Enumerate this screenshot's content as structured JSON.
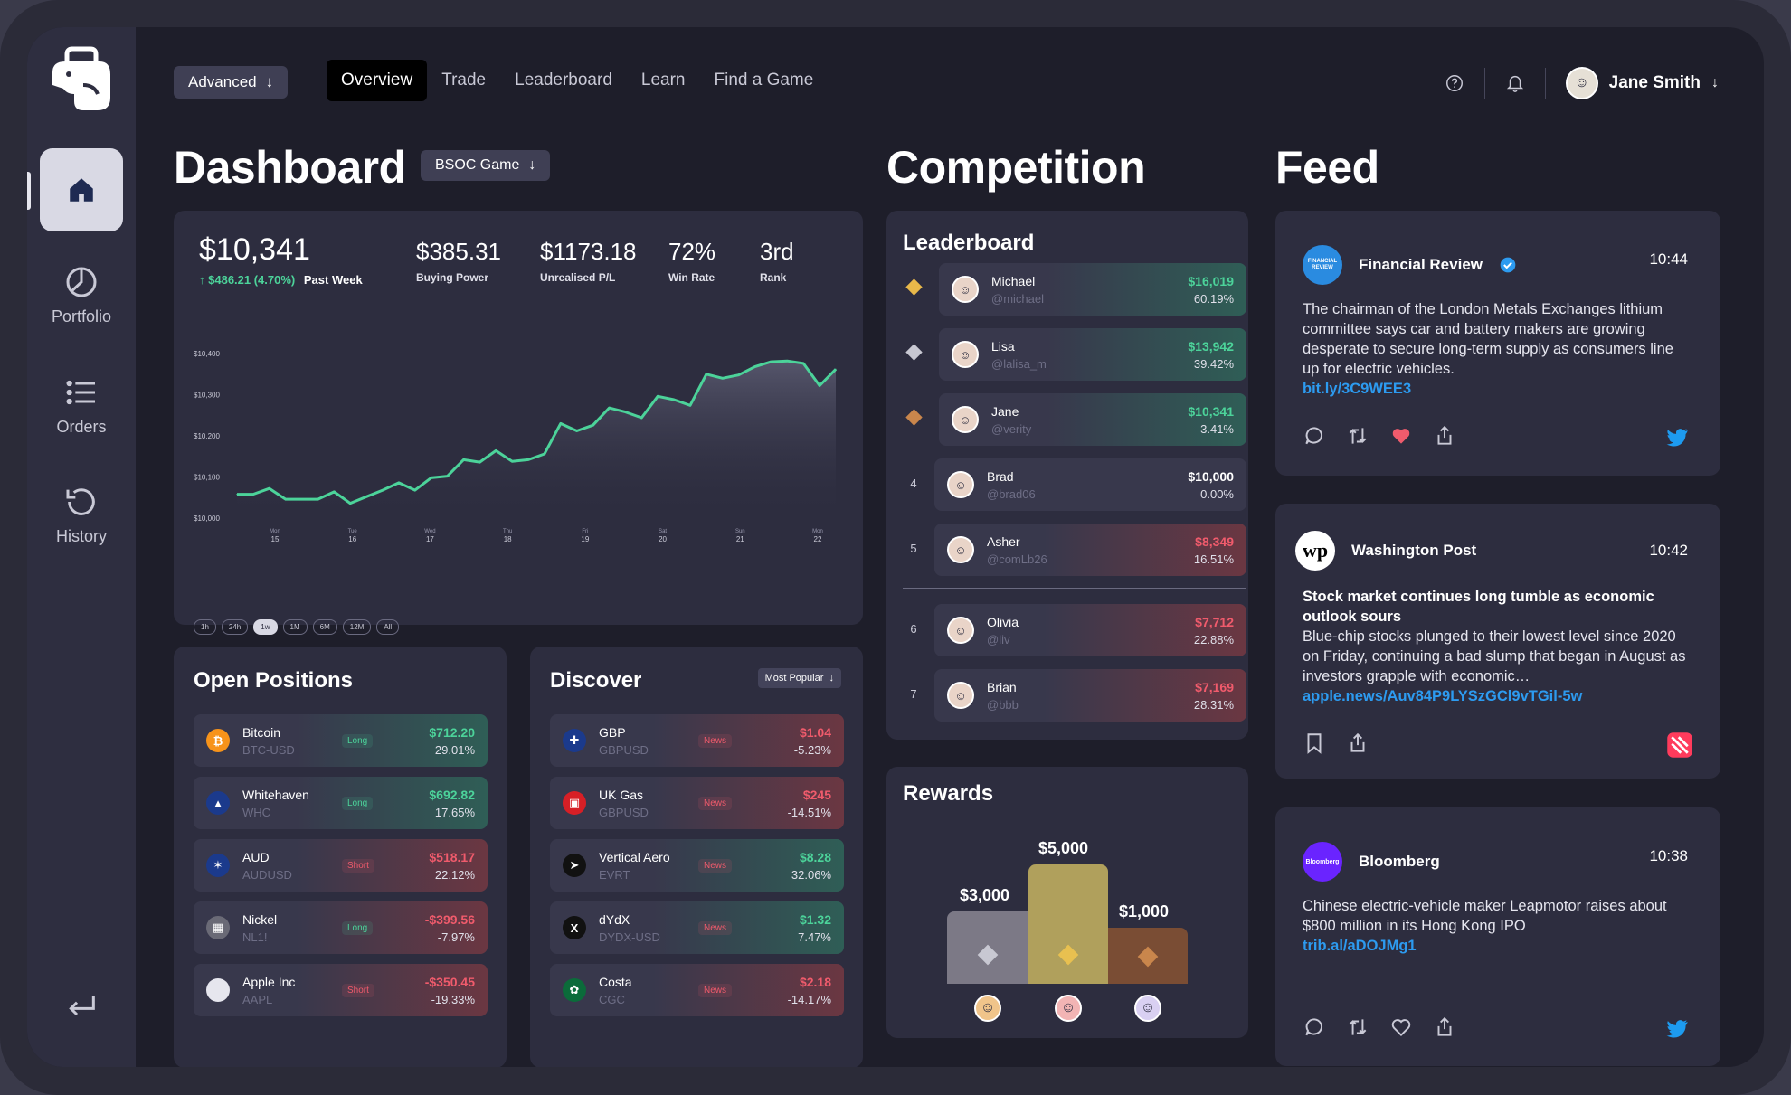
{
  "topbar": {
    "mode_label": "Advanced",
    "tabs": [
      {
        "label": "Overview"
      },
      {
        "label": "Trade"
      },
      {
        "label": "Leaderboard"
      },
      {
        "label": "Learn"
      },
      {
        "label": "Find a Game"
      }
    ],
    "user_name": "Jane Smith"
  },
  "sidebar": {
    "items": [
      {
        "label": "Portfolio"
      },
      {
        "label": "Orders"
      },
      {
        "label": "History"
      }
    ]
  },
  "dashboard": {
    "title": "Dashboard",
    "game_select": "BSOC Game",
    "balance": "$10,341",
    "change": "$486.21 (4.70%)",
    "change_period": "Past Week",
    "stats": [
      {
        "value": "$385.31",
        "label": "Buying Power"
      },
      {
        "value": "$1173.18",
        "label": "Unrealised P/L"
      },
      {
        "value": "72%",
        "label": "Win Rate"
      },
      {
        "value": "3rd",
        "label": "Rank"
      }
    ],
    "ranges": [
      "1h",
      "24h",
      "1w",
      "1M",
      "6M",
      "12M",
      "All"
    ],
    "active_range": "1w"
  },
  "chart_data": {
    "type": "area",
    "x_ticks": [
      {
        "day": "Mon",
        "date": "15"
      },
      {
        "day": "Tue",
        "date": "16"
      },
      {
        "day": "Wed",
        "date": "17"
      },
      {
        "day": "Thu",
        "date": "18"
      },
      {
        "day": "Fri",
        "date": "19"
      },
      {
        "day": "Sat",
        "date": "20"
      },
      {
        "day": "Sun",
        "date": "21"
      },
      {
        "day": "Mon",
        "date": "22"
      }
    ],
    "y_ticks": [
      "$10,400",
      "$10,300",
      "$10,200",
      "$10,100",
      "$10,000"
    ],
    "ylim": [
      10000,
      10400
    ],
    "values": [
      10058,
      10058,
      10072,
      10046,
      10046,
      10046,
      10064,
      10036,
      10052,
      10068,
      10086,
      10068,
      10098,
      10102,
      10142,
      10136,
      10164,
      10138,
      10142,
      10156,
      10230,
      10212,
      10226,
      10268,
      10258,
      10244,
      10296,
      10288,
      10274,
      10350,
      10340,
      10348,
      10368,
      10380,
      10382,
      10376,
      10322,
      10362
    ]
  },
  "open_positions": {
    "title": "Open Positions",
    "items": [
      {
        "name": "Bitcoin",
        "ticker": "BTC-USD",
        "tag": "Long",
        "value": "$712.20",
        "pct": "29.01%",
        "trend": "pos",
        "icon": "bitcoin-icon",
        "icon_bg": "#f7931a",
        "glyph": "₿"
      },
      {
        "name": "Whitehaven",
        "ticker": "WHC",
        "tag": "Long",
        "value": "$692.82",
        "pct": "17.65%",
        "trend": "pos",
        "icon": "whitehaven-icon",
        "icon_bg": "#1b3a8c",
        "glyph": "▲"
      },
      {
        "name": "AUD",
        "ticker": "AUDUSD",
        "tag": "Short",
        "value": "$518.17",
        "pct": "22.12%",
        "trend": "neg",
        "icon": "australia-flag-icon",
        "icon_bg": "#1b3a8c",
        "glyph": "✶"
      },
      {
        "name": "Nickel",
        "ticker": "NL1!",
        "tag": "Long",
        "value": "-$399.56",
        "pct": "-7.97%",
        "trend": "neg",
        "icon": "nickel-icon",
        "icon_bg": "#6a6a76",
        "glyph": "▦"
      },
      {
        "name": "Apple Inc",
        "ticker": "AAPL",
        "tag": "Short",
        "value": "-$350.45",
        "pct": "-19.33%",
        "trend": "neg",
        "icon": "apple-icon",
        "icon_bg": "#e6e6ee",
        "glyph": ""
      }
    ]
  },
  "discover": {
    "title": "Discover",
    "sort": "Most Popular",
    "items": [
      {
        "name": "GBP",
        "ticker": "GBPUSD",
        "tag": "News",
        "value": "$1.04",
        "pct": "-5.23%",
        "trend": "neg",
        "icon": "uk-flag-icon",
        "icon_bg": "#1b3a8c",
        "glyph": "✚"
      },
      {
        "name": "UK Gas",
        "ticker": "GBPUSD",
        "tag": "News",
        "value": "$245",
        "pct": "-14.51%",
        "trend": "neg",
        "icon": "gas-icon",
        "icon_bg": "#d71f26",
        "glyph": "▣"
      },
      {
        "name": "Vertical Aero",
        "ticker": "EVRT",
        "tag": "News",
        "value": "$8.28",
        "pct": "32.06%",
        "trend": "pos",
        "icon": "vertical-aero-icon",
        "icon_bg": "#111",
        "glyph": "➤"
      },
      {
        "name": "dYdX",
        "ticker": "DYDX-USD",
        "tag": "News",
        "value": "$1.32",
        "pct": "7.47%",
        "trend": "pos",
        "icon": "dydx-icon",
        "icon_bg": "#111",
        "glyph": "X"
      },
      {
        "name": "Costa",
        "ticker": "CGC",
        "tag": "News",
        "value": "$2.18",
        "pct": "-14.17%",
        "trend": "neg",
        "icon": "costa-icon",
        "icon_bg": "#0b6b3a",
        "glyph": "✿"
      }
    ]
  },
  "competition": {
    "title": "Competition",
    "leaderboard_title": "Leaderboard",
    "leaders": [
      {
        "rank": "1",
        "medal": "gold-medal-icon",
        "name": "Michael",
        "handle": "@michael",
        "value": "$16,019",
        "pct": "60.19%",
        "trend": "pos"
      },
      {
        "rank": "2",
        "medal": "silver-medal-icon",
        "name": "Lisa",
        "handle": "@lalisa_m",
        "value": "$13,942",
        "pct": "39.42%",
        "trend": "pos"
      },
      {
        "rank": "3",
        "medal": "bronze-medal-icon",
        "name": "Jane",
        "handle": "@verity",
        "value": "$10,341",
        "pct": "3.41%",
        "trend": "pos"
      },
      {
        "rank": "4",
        "name": "Brad",
        "handle": "@brad06",
        "value": "$10,000",
        "pct": "0.00%",
        "trend": "neu"
      },
      {
        "rank": "5",
        "name": "Asher",
        "handle": "@comLb26",
        "value": "$8,349",
        "pct": "16.51%",
        "trend": "neg"
      },
      {
        "rank": "6",
        "name": "Olivia",
        "handle": "@liv",
        "value": "$7,712",
        "pct": "22.88%",
        "trend": "neg"
      },
      {
        "rank": "7",
        "name": "Brian",
        "handle": "@bbb",
        "value": "$7,169",
        "pct": "28.31%",
        "trend": "neg"
      }
    ],
    "rewards_title": "Rewards",
    "rewards": [
      {
        "label": "$3,000",
        "place": "silver"
      },
      {
        "label": "$5,000",
        "place": "gold"
      },
      {
        "label": "$1,000",
        "place": "bronze"
      }
    ]
  },
  "feed": {
    "title": "Feed",
    "posts": [
      {
        "source": "Financial Review",
        "time": "10:44",
        "text": "The chairman of the London Metals Exchanges lithium committee says car and battery makers are growing desperate to secure long-term supply as consumers line up for electric vehicles.",
        "headline": "",
        "link": "bit.ly/3C9WEE3",
        "logo_text": "FINANCIAL REVIEW"
      },
      {
        "source": "Washington Post",
        "time": "10:42",
        "headline": "Stock market continues long tumble as economic outlook sours",
        "text": "Blue-chip stocks plunged to their lowest level since 2020 on Friday, continuing a bad slump that began in August as investors grapple with economic…",
        "link": "apple.news/Auv84P9LYSzGCl9vTGil-5w",
        "logo_text": "wp"
      },
      {
        "source": "Bloomberg",
        "time": "10:38",
        "headline": "",
        "text": "Chinese electric-vehicle maker Leapmotor raises about $800 million in its Hong Kong IPO",
        "link": "trib.al/aDOJMg1",
        "logo_text": "Bloomberg"
      }
    ]
  },
  "colors": {
    "positive": "#4cd39a",
    "negative": "#f05b6c",
    "link": "#2d9bf0",
    "twitter": "#1d9bf0",
    "news": "#ff3b5c",
    "chart_line": "#4cd39a"
  }
}
